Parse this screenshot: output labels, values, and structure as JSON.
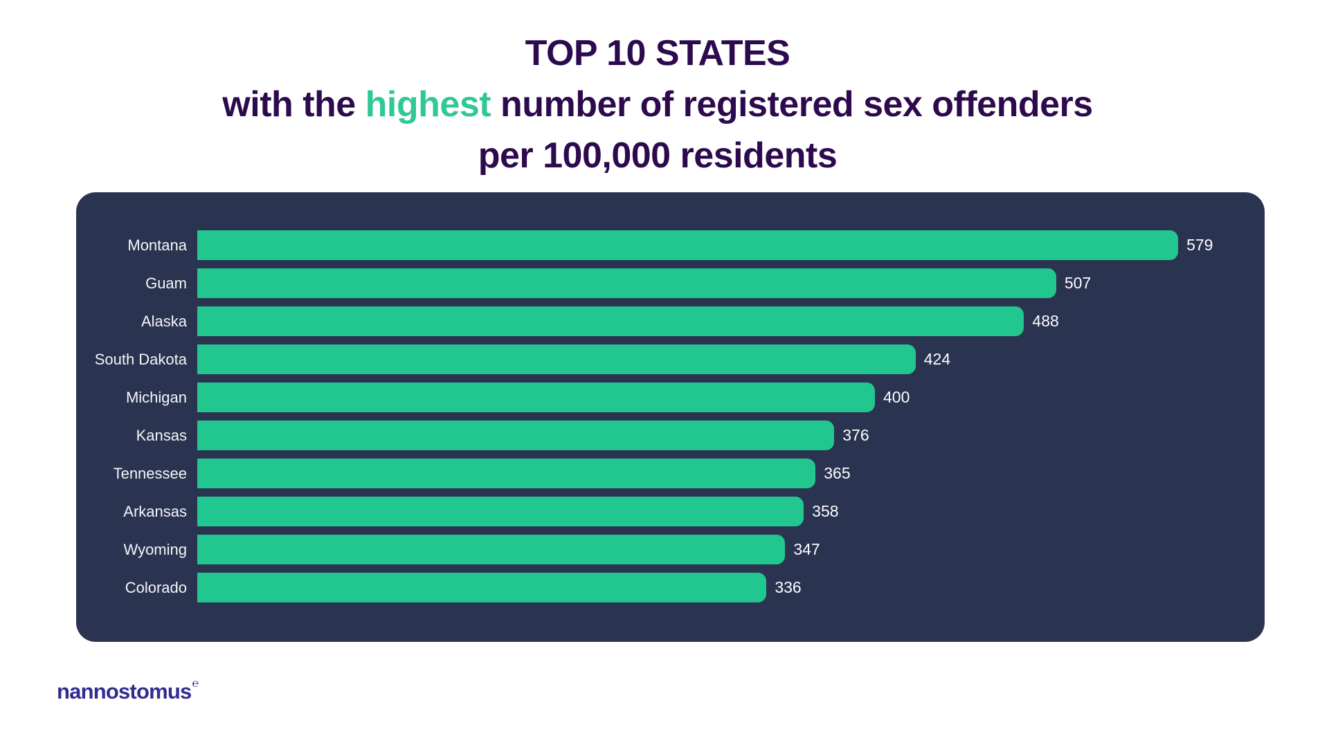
{
  "title": {
    "line1": "TOP 10 STATES",
    "line2_pre": "with the ",
    "line2_highlight": "highest",
    "line2_post": " number of registered sex offenders",
    "line3": "per 100,000 residents"
  },
  "chart_data": {
    "type": "bar",
    "orientation": "horizontal",
    "title": "TOP 10 STATES with the highest number of registered sex offenders per 100,000 residents",
    "categories": [
      "Montana",
      "Guam",
      "Alaska",
      "South Dakota",
      "Michigan",
      "Kansas",
      "Tennessee",
      "Arkansas",
      "Wyoming",
      "Colorado"
    ],
    "values": [
      579,
      507,
      488,
      424,
      400,
      376,
      365,
      358,
      347,
      336
    ],
    "value_labels_shown": true,
    "xlabel": "",
    "ylabel": "",
    "xlim": [
      0,
      630
    ],
    "grid": false,
    "legend": false,
    "sorted": "descending"
  },
  "footer": {
    "brand": "nannostomus",
    "brand_mark": "℮"
  },
  "colors": {
    "background": "#FFFFFF",
    "title_dark": "#2D0A4E",
    "highlight_green": "#2EC994",
    "bar_green": "#22C78F",
    "panel_navy": "#2A3350",
    "label_white": "#F4F6FA",
    "logo_indigo": "#302C90"
  }
}
